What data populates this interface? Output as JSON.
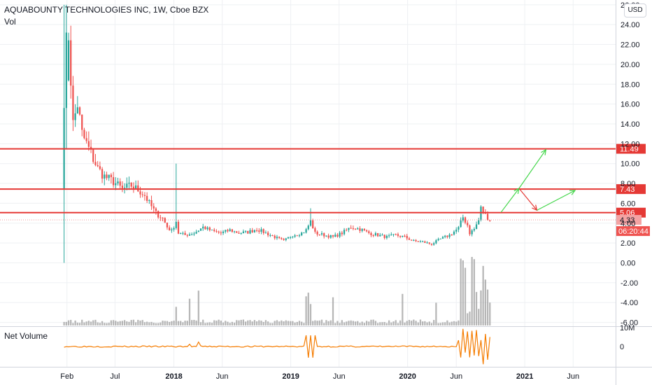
{
  "header": {
    "symbol_title": "AQUABOUNTY TECHNOLOGIES INC, 1W, Cboe BZX",
    "volume_label": "Vol",
    "currency_button": "USD"
  },
  "indicator": {
    "name": "Net Volume",
    "ticks": [
      "10M",
      "0"
    ]
  },
  "colors": {
    "up": "#26a69a",
    "down": "#ef5350",
    "level_line": "#e53935",
    "green_arrow": "#43d64a",
    "red_arrow": "#e53935",
    "net_volume": "#f57c00",
    "volume": "#9e9e9e",
    "grid": "#eef0f3"
  },
  "chart_data": {
    "type": "candlestick",
    "y_ticks": [
      "26.00",
      "24.00",
      "22.00",
      "20.00",
      "18.00",
      "16.00",
      "14.00",
      "12.00",
      "10.00",
      "8.00",
      "6.00",
      "4.00",
      "2.00",
      "0.00",
      "-2.00",
      "-4.00",
      "-6.00"
    ],
    "x_ticks": [
      "Feb",
      "Jul",
      "2018",
      "Jun",
      "2019",
      "Jun",
      "2020",
      "Jun",
      "2021",
      "Jun"
    ],
    "ylim": [
      -6.5,
      26.5
    ],
    "horizontal_levels": [
      {
        "label": "11.49",
        "value": 11.49
      },
      {
        "label": "7.43",
        "value": 7.43
      },
      {
        "label": "5.06",
        "value": 5.06
      }
    ],
    "current_price": {
      "label": "4.33",
      "value": 4.33
    },
    "countdown": "06:20:44",
    "projection_arrows": [
      {
        "color": "green",
        "from": [
          "2020-10-19",
          5.1
        ],
        "to": [
          "2020-12-14",
          7.5
        ]
      },
      {
        "color": "green",
        "from": [
          "2020-12-14",
          7.5
        ],
        "to": [
          "2021-03-08",
          11.4
        ]
      },
      {
        "color": "red",
        "from": [
          "2020-12-14",
          7.5
        ],
        "to": [
          "2021-02-08",
          5.3
        ]
      },
      {
        "color": "green",
        "from": [
          "2021-02-08",
          5.3
        ],
        "to": [
          "2021-06-07",
          7.3
        ]
      }
    ]
  }
}
